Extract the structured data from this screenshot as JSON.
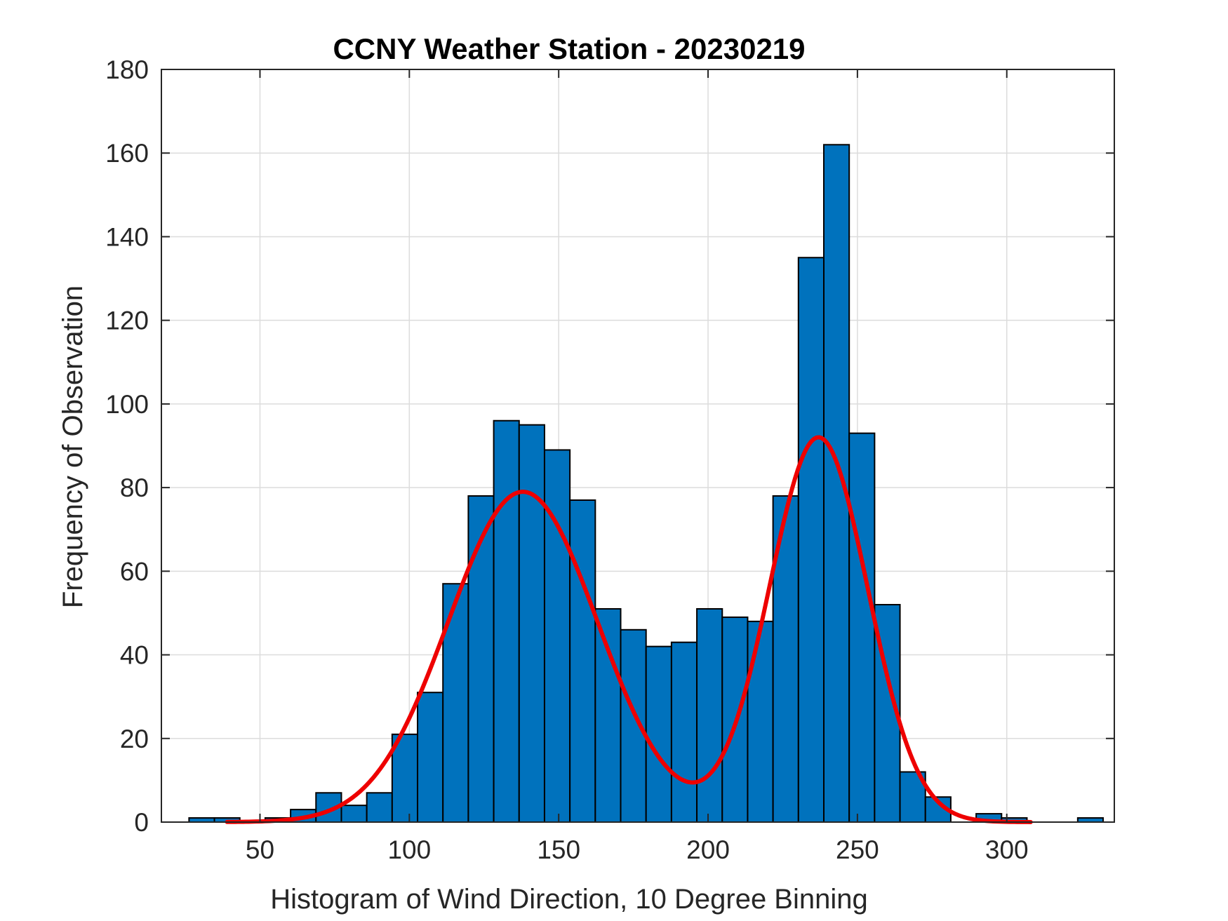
{
  "chart_data": {
    "type": "bar",
    "title": "CCNY Weather Station - 20230219",
    "xlabel": "Histogram of Wind Direction, 10 Degree Binning",
    "ylabel": "Frequency of Observation",
    "xlim": [
      17,
      336
    ],
    "ylim": [
      0,
      180
    ],
    "xticks": [
      50,
      100,
      150,
      200,
      250,
      300
    ],
    "yticks": [
      0,
      20,
      40,
      60,
      80,
      100,
      120,
      140,
      160,
      180
    ],
    "grid": true,
    "bin_width": 8.5,
    "bins": [
      {
        "x": 30.5,
        "count": 1
      },
      {
        "x": 39,
        "count": 1
      },
      {
        "x": 47.5,
        "count": 0
      },
      {
        "x": 56,
        "count": 1
      },
      {
        "x": 64.5,
        "count": 3
      },
      {
        "x": 73,
        "count": 7
      },
      {
        "x": 81.5,
        "count": 4
      },
      {
        "x": 90,
        "count": 7
      },
      {
        "x": 98.5,
        "count": 21
      },
      {
        "x": 107,
        "count": 31
      },
      {
        "x": 115.5,
        "count": 57
      },
      {
        "x": 124,
        "count": 78
      },
      {
        "x": 132.5,
        "count": 96
      },
      {
        "x": 141,
        "count": 95
      },
      {
        "x": 149.5,
        "count": 89
      },
      {
        "x": 158,
        "count": 77
      },
      {
        "x": 166.5,
        "count": 51
      },
      {
        "x": 175,
        "count": 46
      },
      {
        "x": 183.5,
        "count": 42
      },
      {
        "x": 192,
        "count": 43
      },
      {
        "x": 200.5,
        "count": 51
      },
      {
        "x": 209,
        "count": 49
      },
      {
        "x": 217.5,
        "count": 48
      },
      {
        "x": 226,
        "count": 78
      },
      {
        "x": 234.5,
        "count": 135
      },
      {
        "x": 243,
        "count": 162
      },
      {
        "x": 251.5,
        "count": 93
      },
      {
        "x": 260,
        "count": 52
      },
      {
        "x": 268.5,
        "count": 12
      },
      {
        "x": 277,
        "count": 6
      },
      {
        "x": 285.5,
        "count": 0
      },
      {
        "x": 294,
        "count": 2
      },
      {
        "x": 302.5,
        "count": 1
      },
      {
        "x": 311,
        "count": 0
      },
      {
        "x": 319.5,
        "count": 0
      },
      {
        "x": 328,
        "count": 1
      }
    ],
    "fit_curve": {
      "type": "gaussian-mixture",
      "x_range": [
        39,
        308
      ],
      "components": [
        {
          "amplitude": 79,
          "mean": 138,
          "sigma": 25
        },
        {
          "amplitude": 92,
          "mean": 237,
          "sigma": 16.5
        }
      ],
      "color": "#ee0000"
    },
    "bar_color": "#0072bd",
    "bar_edge_color": "#000000",
    "grid_color": "#dcdcdc",
    "axis_color": "#262626"
  }
}
